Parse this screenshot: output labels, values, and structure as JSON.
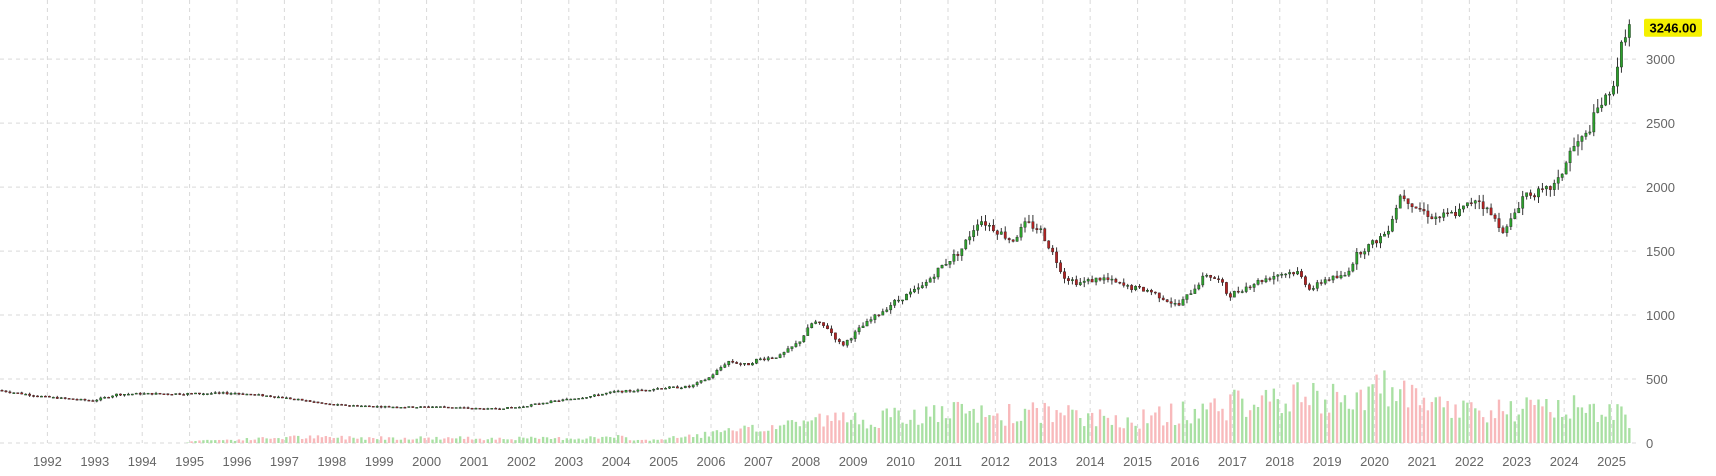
{
  "chart_data": {
    "type": "candlestick",
    "title": "",
    "xlabel": "",
    "ylabel": "",
    "xlim": [
      1991.0,
      2025.6
    ],
    "ylim": [
      0,
      3400
    ],
    "y_axis_side": "right",
    "grid": true,
    "last_price_label": "3246.00",
    "last_price": 3246,
    "y_ticks": [
      {
        "value": 0,
        "label": "0"
      },
      {
        "value": 500,
        "label": "500"
      },
      {
        "value": 1000,
        "label": "1000"
      },
      {
        "value": 1500,
        "label": "1500"
      },
      {
        "value": 2000,
        "label": "2000"
      },
      {
        "value": 2500,
        "label": "2500"
      },
      {
        "value": 3000,
        "label": "3000"
      }
    ],
    "x_ticks": [
      "1992",
      "1993",
      "1994",
      "1995",
      "1996",
      "1997",
      "1998",
      "1999",
      "2000",
      "2001",
      "2002",
      "2003",
      "2004",
      "2005",
      "2006",
      "2007",
      "2008",
      "2009",
      "2010",
      "2011",
      "2012",
      "2013",
      "2014",
      "2015",
      "2016",
      "2017",
      "2018",
      "2019",
      "2020",
      "2021",
      "2022",
      "2023",
      "2024",
      "2025"
    ],
    "price_path": [
      [
        1991.0,
        412
      ],
      [
        1992.0,
        360
      ],
      [
        1992.5,
        345
      ],
      [
        1993.0,
        330
      ],
      [
        1993.5,
        380
      ],
      [
        1994.0,
        385
      ],
      [
        1995.0,
        385
      ],
      [
        1996.0,
        390
      ],
      [
        1996.8,
        365
      ],
      [
        1997.5,
        330
      ],
      [
        1998.0,
        300
      ],
      [
        1999.0,
        285
      ],
      [
        1999.8,
        280
      ],
      [
        2000.2,
        285
      ],
      [
        2000.8,
        275
      ],
      [
        2001.3,
        265
      ],
      [
        2002.0,
        280
      ],
      [
        2002.5,
        315
      ],
      [
        2003.0,
        340
      ],
      [
        2003.5,
        365
      ],
      [
        2004.0,
        400
      ],
      [
        2004.5,
        410
      ],
      [
        2005.0,
        430
      ],
      [
        2005.6,
        440
      ],
      [
        2006.0,
        510
      ],
      [
        2006.4,
        640
      ],
      [
        2006.8,
        610
      ],
      [
        2007.0,
        650
      ],
      [
        2007.5,
        680
      ],
      [
        2007.9,
        790
      ],
      [
        2008.2,
        950
      ],
      [
        2008.5,
        900
      ],
      [
        2008.8,
        760
      ],
      [
        2009.2,
        900
      ],
      [
        2009.9,
        1100
      ],
      [
        2010.5,
        1220
      ],
      [
        2010.9,
        1380
      ],
      [
        2011.3,
        1500
      ],
      [
        2011.7,
        1750
      ],
      [
        2012.0,
        1680
      ],
      [
        2012.4,
        1580
      ],
      [
        2012.7,
        1720
      ],
      [
        2013.0,
        1660
      ],
      [
        2013.3,
        1450
      ],
      [
        2013.5,
        1300
      ],
      [
        2013.8,
        1250
      ],
      [
        2014.3,
        1290
      ],
      [
        2014.8,
        1220
      ],
      [
        2015.3,
        1190
      ],
      [
        2015.9,
        1070
      ],
      [
        2016.5,
        1320
      ],
      [
        2016.8,
        1260
      ],
      [
        2016.95,
        1150
      ],
      [
        2017.5,
        1250
      ],
      [
        2018.0,
        1320
      ],
      [
        2018.4,
        1340
      ],
      [
        2018.7,
        1200
      ],
      [
        2019.0,
        1280
      ],
      [
        2019.4,
        1300
      ],
      [
        2019.7,
        1490
      ],
      [
        2020.0,
        1560
      ],
      [
        2020.3,
        1650
      ],
      [
        2020.6,
        1950
      ],
      [
        2020.9,
        1850
      ],
      [
        2021.3,
        1760
      ],
      [
        2021.8,
        1800
      ],
      [
        2022.2,
        1920
      ],
      [
        2022.5,
        1780
      ],
      [
        2022.8,
        1650
      ],
      [
        2023.2,
        1950
      ],
      [
        2023.6,
        1960
      ],
      [
        2023.9,
        2030
      ],
      [
        2024.2,
        2300
      ],
      [
        2024.5,
        2400
      ],
      [
        2024.8,
        2650
      ],
      [
        2025.0,
        2700
      ],
      [
        2025.35,
        3246
      ]
    ],
    "volume_path": [
      [
        1994.9,
        0
      ],
      [
        1995.0,
        20
      ],
      [
        1996.0,
        25
      ],
      [
        1997.0,
        45
      ],
      [
        1999.5,
        40
      ],
      [
        2002.5,
        35
      ],
      [
        2004.0,
        45
      ],
      [
        2004.5,
        20
      ],
      [
        2005.2,
        40
      ],
      [
        2006.0,
        75
      ],
      [
        2007.0,
        110
      ],
      [
        2008.0,
        180
      ],
      [
        2009.0,
        185
      ],
      [
        2010.0,
        200
      ],
      [
        2011.0,
        235
      ],
      [
        2012.0,
        215
      ],
      [
        2013.0,
        240
      ],
      [
        2014.0,
        190
      ],
      [
        2015.0,
        185
      ],
      [
        2016.0,
        240
      ],
      [
        2017.0,
        300
      ],
      [
        2018.0,
        350
      ],
      [
        2019.0,
        330
      ],
      [
        2020.0,
        420
      ],
      [
        2020.5,
        380
      ],
      [
        2021.0,
        280
      ],
      [
        2022.0,
        260
      ],
      [
        2023.0,
        250
      ],
      [
        2024.0,
        280
      ],
      [
        2025.0,
        270
      ],
      [
        2025.35,
        150
      ]
    ],
    "colors": {
      "up": "#2ca02c",
      "down": "#b22222",
      "wick": "#333333",
      "volume_up": "#a9e0a3",
      "volume_down": "#f8b9bb",
      "grid": "#d9d9d9",
      "tick_text": "#666666",
      "badge_bg": "#f4f000"
    }
  }
}
